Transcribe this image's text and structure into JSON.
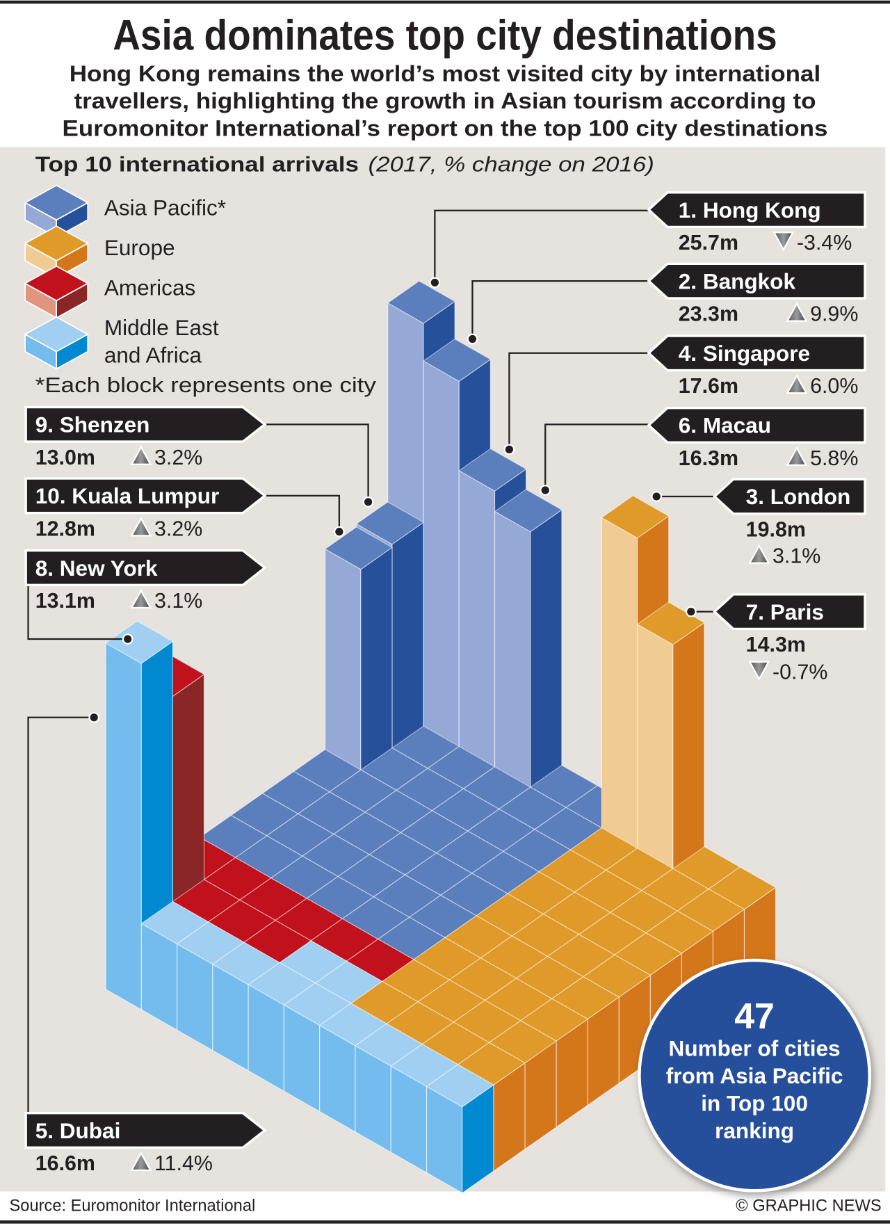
{
  "title": "Asia dominates top city destinations",
  "subtitle": [
    "Hong Kong remains the world’s most visited city by international",
    "travellers, highlighting the growth in Asian tourism according to",
    "Euromonitor International’s report on the top 100 city destinations"
  ],
  "section_heading": "Top 10 international arrivals",
  "section_note": "(2017, % change on 2016)",
  "legend": {
    "items": [
      {
        "label": "Asia Pacific*",
        "region": "asia"
      },
      {
        "label": "Europe",
        "region": "europe"
      },
      {
        "label": "Americas",
        "region": "americas"
      },
      {
        "label": "Middle East",
        "label2": "and Africa",
        "region": "mea"
      }
    ],
    "footnote": "*Each block represents one city"
  },
  "colors": {
    "asia": {
      "top": "#5b7fbd",
      "left": "#96a8d6",
      "right": "#27509b"
    },
    "europe": {
      "top": "#e09a2a",
      "left": "#f1cb94",
      "right": "#d4761a"
    },
    "americas": {
      "top": "#c0111c",
      "left": "#e0957f",
      "right": "#8b2626"
    },
    "mea": {
      "top": "#a0cff2",
      "left": "#74bcee",
      "right": "#0088d1"
    },
    "callout": "#231f20",
    "panel": "#e6e3de",
    "circle": "#27509b"
  },
  "chart_data": {
    "type": "isometric-block",
    "title": "Top 10 international arrivals",
    "unit": "million arrivals, 2017; % change on 2016",
    "cities": [
      {
        "label": "1. Hong Kong",
        "arrivals": "25.7m",
        "change": "-3.4%",
        "region": "asia"
      },
      {
        "label": "2. Bangkok",
        "arrivals": "23.3m",
        "change": "9.9%",
        "region": "asia"
      },
      {
        "label": "3. London",
        "arrivals": "19.8m",
        "change": "3.1%",
        "region": "europe"
      },
      {
        "label": "4. Singapore",
        "arrivals": "17.6m",
        "change": "6.0%",
        "region": "asia"
      },
      {
        "label": "5. Dubai",
        "arrivals": "16.6m",
        "change": "11.4%",
        "region": "mea"
      },
      {
        "label": "6. Macau",
        "arrivals": "16.3m",
        "change": "5.8%",
        "region": "asia"
      },
      {
        "label": "7. Paris",
        "arrivals": "14.3m",
        "change": "-0.7%",
        "region": "europe"
      },
      {
        "label": "8. New York",
        "arrivals": "13.1m",
        "change": "3.1%",
        "region": "americas"
      },
      {
        "label": "9. Shenzen",
        "arrivals": "13.0m",
        "change": "3.2%",
        "region": "asia"
      },
      {
        "label": "10. Kuala Lumpur",
        "arrivals": "12.8m",
        "change": "3.2%",
        "region": "asia"
      }
    ]
  },
  "callout": {
    "number": "47",
    "lines": [
      "Number of cities",
      "from Asia Pacific",
      "in Top 100",
      "ranking"
    ]
  },
  "footer": {
    "source": "Source: Euromonitor International",
    "credit": "© GRAPHIC NEWS"
  }
}
